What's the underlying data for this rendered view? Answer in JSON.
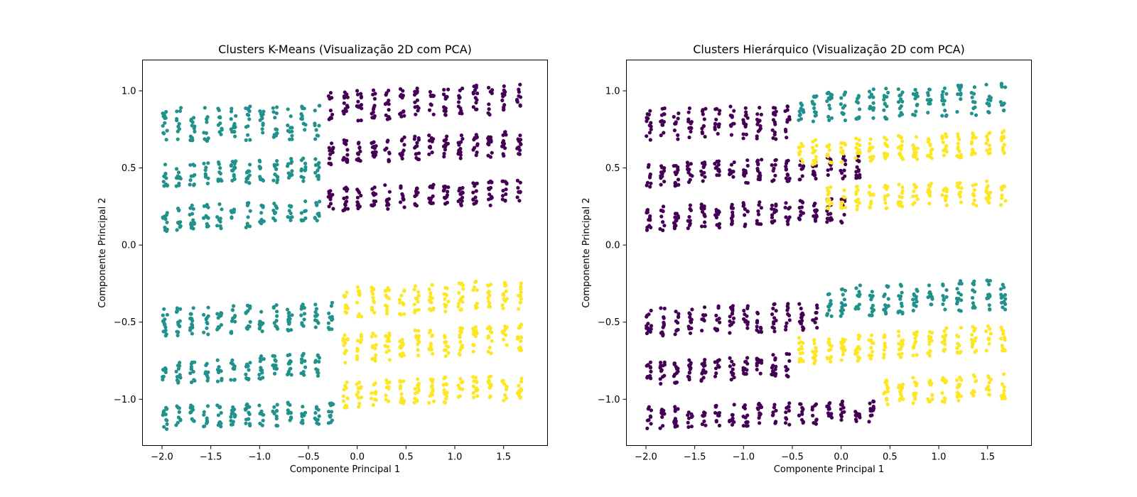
{
  "chart_data": [
    {
      "type": "scatter",
      "title": "Clusters K-Means (Visualização 2D com PCA)",
      "xlabel": "Componente Principal 1",
      "ylabel": "Componente Principal 2",
      "xlim": [
        -2.2,
        1.95
      ],
      "ylim": [
        -1.3,
        1.2
      ],
      "xticks": [
        -2.0,
        -1.5,
        -1.0,
        -0.5,
        0.0,
        0.5,
        1.0,
        1.5
      ],
      "xtick_labels": [
        "−2.0",
        "−1.5",
        "−1.0",
        "−0.5",
        "0.0",
        "0.5",
        "1.0",
        "1.5"
      ],
      "yticks": [
        -1.0,
        -0.5,
        0.0,
        0.5,
        1.0
      ],
      "ytick_labels": [
        "−1.0",
        "−0.5",
        "0.0",
        "0.5",
        "1.0"
      ],
      "grid": false,
      "legend": "none",
      "column_x": [
        -1.97,
        -1.83,
        -1.69,
        -1.55,
        -1.41,
        -1.27,
        -1.12,
        -0.98,
        -0.84,
        -0.69,
        -0.55,
        -0.41,
        -0.27,
        -0.12,
        0.02,
        0.17,
        0.31,
        0.46,
        0.61,
        0.76,
        0.91,
        1.06,
        1.21,
        1.36,
        1.51,
        1.66
      ],
      "series": [
        {
          "color": "#21918c",
          "bands": [
            {
              "x_range": [
                -1.97,
                -0.41
              ],
              "y_start": 0.78,
              "y_end": 0.82,
              "spread": 0.22
            },
            {
              "x_range": [
                -1.97,
                -0.41
              ],
              "y_start": 0.45,
              "y_end": 0.55,
              "spread": 0.15
            },
            {
              "x_range": [
                -1.97,
                -0.41
              ],
              "y_start": 0.17,
              "y_end": 0.27,
              "spread": 0.16
            },
            {
              "x_range": [
                -1.97,
                -0.27
              ],
              "y_start": -0.5,
              "y_end": -0.42,
              "spread": 0.18
            },
            {
              "x_range": [
                -1.97,
                -0.41
              ],
              "y_start": -0.83,
              "y_end": -0.7,
              "spread": 0.15
            },
            {
              "x_range": [
                -1.97,
                -0.27
              ],
              "y_start": -1.12,
              "y_end": -1.05,
              "spread": 0.15
            }
          ]
        },
        {
          "color": "#440154",
          "bands": [
            {
              "x_range": [
                -0.27,
                1.66
              ],
              "y_start": 0.85,
              "y_end": 0.95,
              "spread": 0.2
            },
            {
              "x_range": [
                -0.27,
                1.66
              ],
              "y_start": 0.55,
              "y_end": 0.66,
              "spread": 0.16
            },
            {
              "x_range": [
                -0.27,
                1.66
              ],
              "y_start": 0.26,
              "y_end": 0.34,
              "spread": 0.16
            }
          ]
        },
        {
          "color": "#fde725",
          "bands": [
            {
              "x_range": [
                -0.12,
                1.66
              ],
              "y_start": -0.42,
              "y_end": -0.32,
              "spread": 0.2
            },
            {
              "x_range": [
                -0.12,
                1.66
              ],
              "y_start": -0.75,
              "y_end": -0.6,
              "spread": 0.18
            },
            {
              "x_range": [
                -0.12,
                1.66
              ],
              "y_start": -1.02,
              "y_end": -0.92,
              "spread": 0.17
            }
          ]
        }
      ]
    },
    {
      "type": "scatter",
      "title": "Clusters Hierárquico (Visualização 2D com PCA)",
      "xlabel": "Componente Principal 1",
      "ylabel": "Componente Principal 2",
      "xlim": [
        -2.2,
        1.95
      ],
      "ylim": [
        -1.3,
        1.2
      ],
      "xticks": [
        -2.0,
        -1.5,
        -1.0,
        -0.5,
        0.0,
        0.5,
        1.0,
        1.5
      ],
      "xtick_labels": [
        "−2.0",
        "−1.5",
        "−1.0",
        "−0.5",
        "0.0",
        "0.5",
        "1.0",
        "1.5"
      ],
      "yticks": [
        -1.0,
        -0.5,
        0.0,
        0.5,
        1.0
      ],
      "ytick_labels": [
        "−1.0",
        "−0.5",
        "0.0",
        "0.5",
        "1.0"
      ],
      "grid": false,
      "legend": "none",
      "column_x": [
        -1.97,
        -1.83,
        -1.69,
        -1.55,
        -1.41,
        -1.27,
        -1.12,
        -0.98,
        -0.84,
        -0.69,
        -0.55,
        -0.41,
        -0.27,
        -0.12,
        0.02,
        0.17,
        0.31,
        0.46,
        0.61,
        0.76,
        0.91,
        1.06,
        1.21,
        1.36,
        1.51,
        1.66
      ],
      "series": [
        {
          "color": "#440154",
          "bands": [
            {
              "x_range": [
                -1.97,
                -0.55
              ],
              "y_start": 0.78,
              "y_end": 0.82,
              "spread": 0.22
            },
            {
              "x_range": [
                -1.97,
                0.17
              ],
              "y_start": 0.45,
              "y_end": 0.55,
              "spread": 0.15
            },
            {
              "x_range": [
                -1.97,
                0.02
              ],
              "y_start": 0.17,
              "y_end": 0.27,
              "spread": 0.16
            },
            {
              "x_range": [
                -1.97,
                -0.27
              ],
              "y_start": -0.5,
              "y_end": -0.42,
              "spread": 0.18
            },
            {
              "x_range": [
                -1.97,
                -0.55
              ],
              "y_start": -0.83,
              "y_end": -0.7,
              "spread": 0.15
            },
            {
              "x_range": [
                -1.97,
                0.31
              ],
              "y_start": -1.12,
              "y_end": -1.05,
              "spread": 0.15
            }
          ]
        },
        {
          "color": "#21918c",
          "bands": [
            {
              "x_range": [
                -0.41,
                1.66
              ],
              "y_start": 0.85,
              "y_end": 0.95,
              "spread": 0.2
            },
            {
              "x_range": [
                -0.12,
                1.66
              ],
              "y_start": -0.42,
              "y_end": -0.32,
              "spread": 0.2
            }
          ]
        },
        {
          "color": "#fde725",
          "bands": [
            {
              "x_range": [
                -0.41,
                1.66
              ],
              "y_start": 0.55,
              "y_end": 0.66,
              "spread": 0.16
            },
            {
              "x_range": [
                -0.12,
                1.66
              ],
              "y_start": 0.26,
              "y_end": 0.34,
              "spread": 0.16
            },
            {
              "x_range": [
                -0.41,
                1.66
              ],
              "y_start": -0.75,
              "y_end": -0.6,
              "spread": 0.18
            },
            {
              "x_range": [
                0.46,
                1.66
              ],
              "y_start": -1.02,
              "y_end": -0.92,
              "spread": 0.17
            }
          ]
        }
      ]
    }
  ]
}
